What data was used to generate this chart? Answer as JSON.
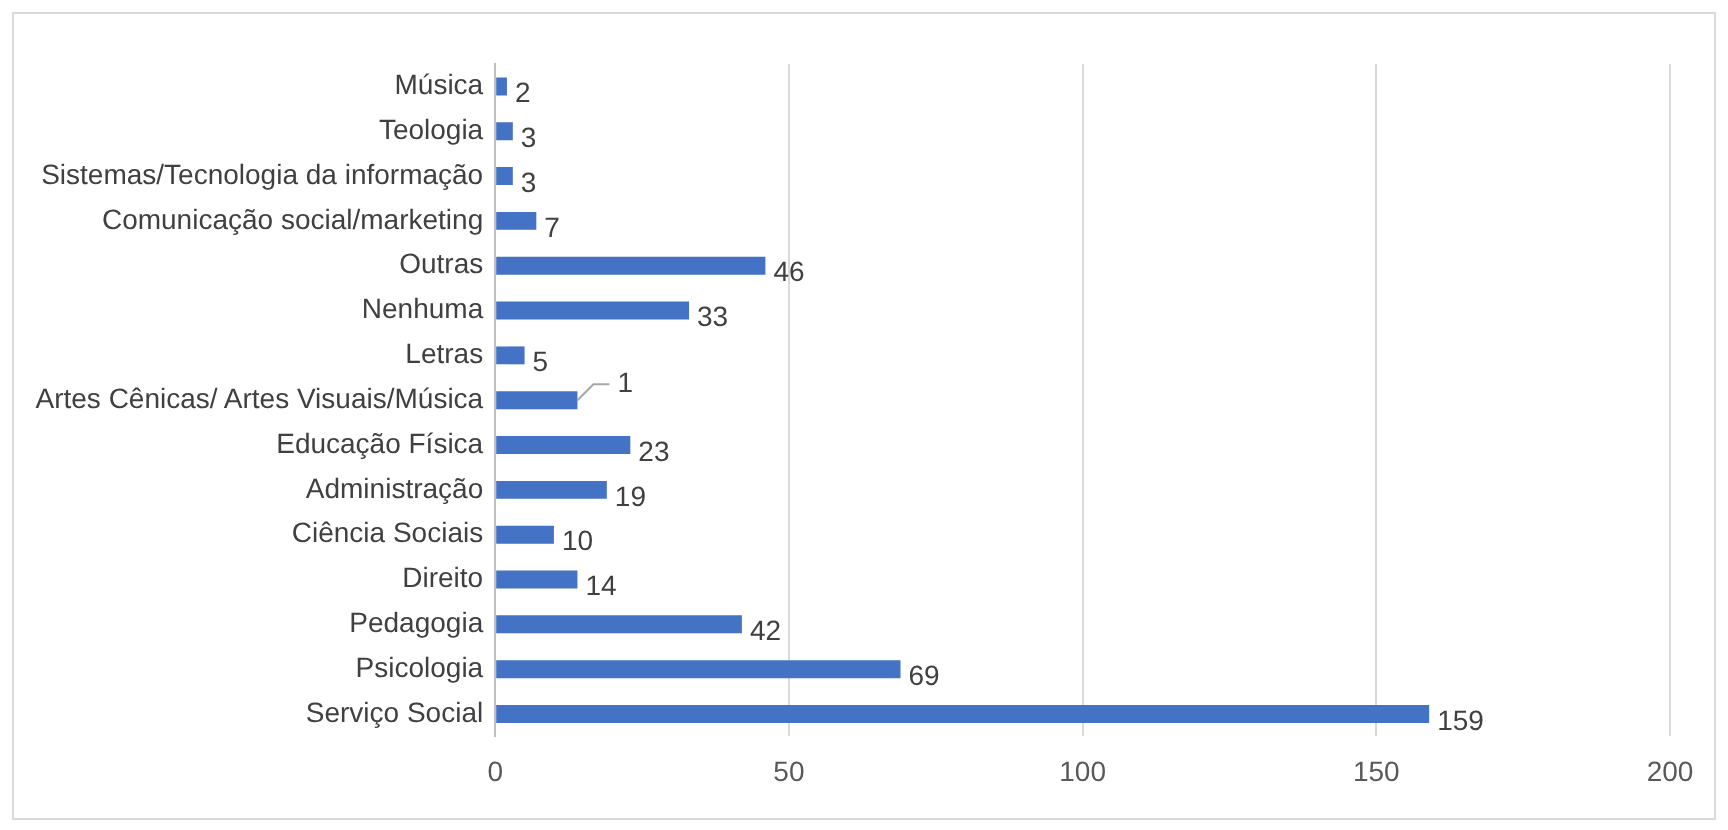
{
  "chart_data": {
    "type": "bar",
    "orientation": "horizontal",
    "categories": [
      "Música",
      "Teologia",
      "Sistemas/Tecnologia da informação",
      "Comunicação social/marketing",
      "Outras",
      "Nenhuma",
      "Letras",
      "Artes Cênicas/ Artes Visuais/Música",
      "Educação Física",
      "Administração",
      "Ciência Sociais",
      "Direito",
      "Pedagogia",
      "Psicologia",
      "Serviço Social"
    ],
    "values": [
      2,
      3,
      3,
      7,
      46,
      33,
      5,
      14,
      23,
      19,
      10,
      14,
      42,
      69,
      159
    ],
    "value_labels": [
      "2",
      "3",
      "3",
      "7",
      "46",
      "33",
      "5",
      null,
      "23",
      "19",
      "10",
      "14",
      "42",
      "69",
      "159"
    ],
    "annotations": [
      {
        "text": "1",
        "x": 14,
        "y": "Artes Cênicas/ Artes Visuais/Música"
      }
    ],
    "color": "#4472c4",
    "xlim": [
      0,
      200
    ],
    "xticks": [
      0,
      50,
      100,
      150,
      200
    ],
    "grid": "x",
    "legend": false
  }
}
